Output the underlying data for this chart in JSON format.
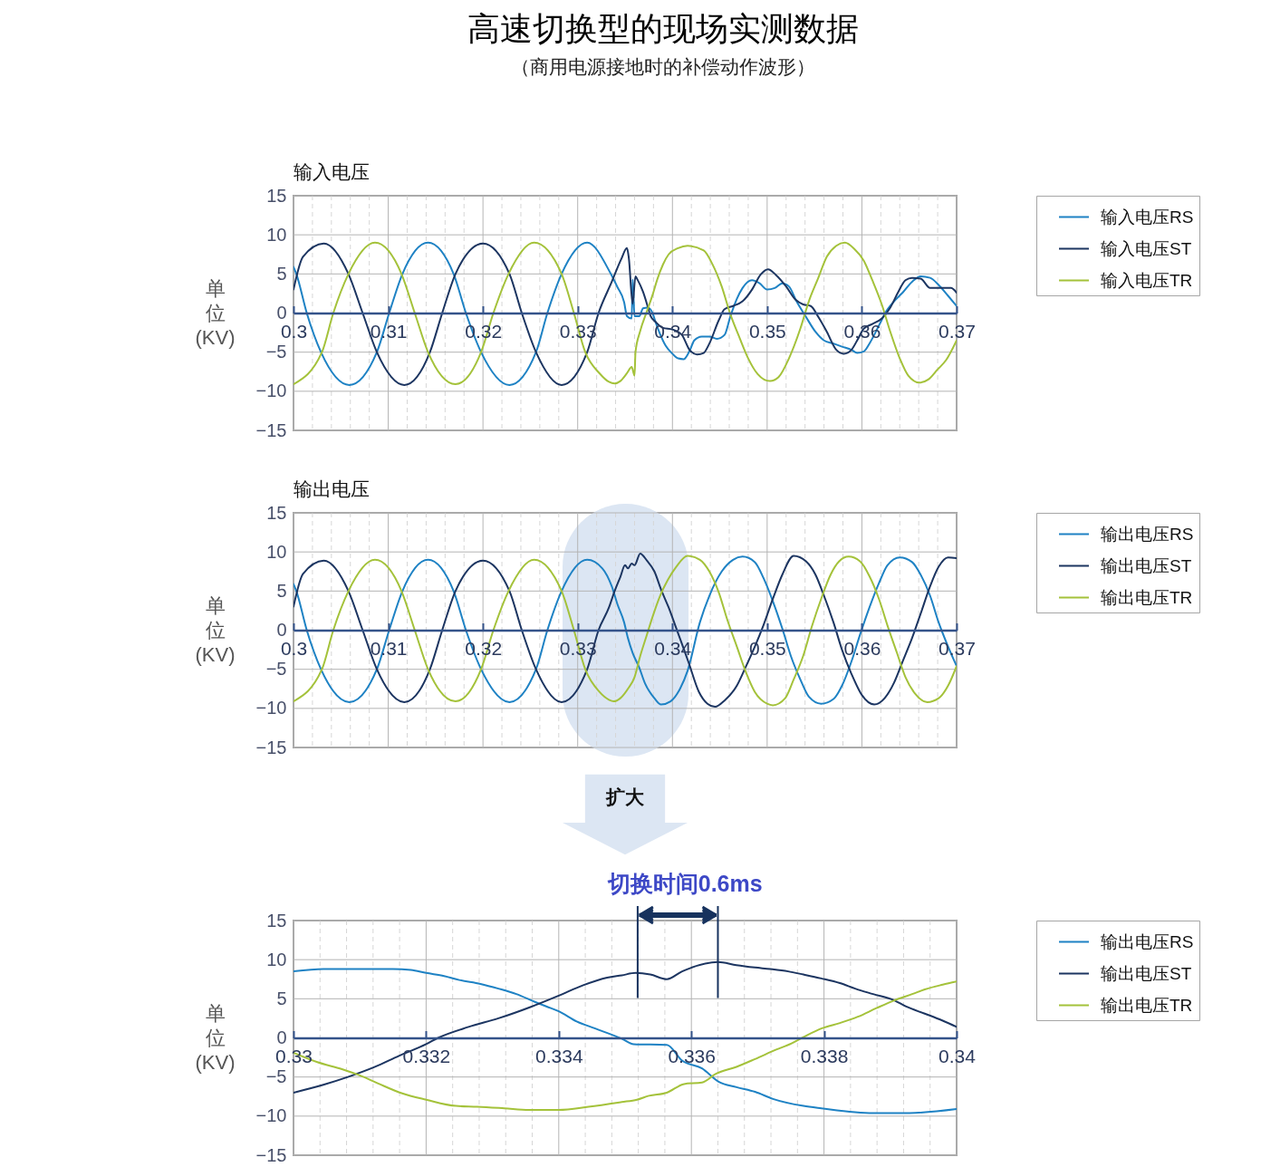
{
  "chart_data": [
    {
      "type": "other",
      "title": "高速切换型的现场实测数据",
      "subtitle": "（商用电源接地时的补偿动作波形）"
    },
    {
      "type": "line",
      "title": "输入电压",
      "ylabel": "单位(KV)",
      "xlim": [
        0.3,
        0.37
      ],
      "ylim": [
        -15,
        15
      ],
      "xticks": [
        0.3,
        {
          "value": 0.302,
          "label": null
        },
        {
          "value": 0.304,
          "label": null
        },
        {
          "value": 0.306,
          "label": null
        },
        {
          "value": 0.308,
          "label": null
        },
        0.31,
        {
          "value": 0.312,
          "label": null
        },
        {
          "value": 0.314,
          "label": null
        },
        {
          "value": 0.316,
          "label": null
        },
        {
          "value": 0.318,
          "label": null
        },
        0.32,
        {
          "value": 0.322,
          "label": null
        },
        {
          "value": 0.324,
          "label": null
        },
        {
          "value": 0.326,
          "label": null
        },
        {
          "value": 0.328,
          "label": null
        },
        0.33,
        {
          "value": 0.332,
          "label": null
        },
        {
          "value": 0.334,
          "label": null
        },
        {
          "value": 0.336,
          "label": null
        },
        {
          "value": 0.338,
          "label": null
        },
        0.34,
        {
          "value": 0.342,
          "label": null
        },
        {
          "value": 0.344,
          "label": null
        },
        {
          "value": 0.346,
          "label": null
        },
        {
          "value": 0.348,
          "label": null
        },
        0.35,
        {
          "value": 0.352,
          "label": null
        },
        {
          "value": 0.354,
          "label": null
        },
        {
          "value": 0.356,
          "label": null
        },
        {
          "value": 0.358,
          "label": null
        },
        0.36,
        {
          "value": 0.362,
          "label": null
        },
        {
          "value": 0.364,
          "label": null
        },
        {
          "value": 0.366,
          "label": null
        },
        {
          "value": 0.368,
          "label": null
        },
        0.37
      ],
      "yticks": [
        -15,
        -10,
        -5,
        0,
        5,
        10,
        15
      ],
      "grid": true,
      "legend": "right",
      "series": [
        {
          "name": "输入电压RS",
          "color": "#1e82c4",
          "x": [
            0.3,
            0.3003,
            0.3014,
            0.3029,
            0.3059,
            0.3088,
            0.3101,
            0.3115,
            0.3142,
            0.3169,
            0.3182,
            0.3198,
            0.3228,
            0.3256,
            0.3268,
            0.3283,
            0.331,
            0.3335,
            0.3342,
            0.3349,
            0.3352,
            0.3357,
            0.3358,
            0.336,
            0.3365,
            0.3369,
            0.3374,
            0.3379,
            0.3382,
            0.3387,
            0.3393,
            0.34,
            0.3406,
            0.3412,
            0.3419,
            0.3423,
            0.3431,
            0.3439,
            0.3447,
            0.3455,
            0.3461,
            0.3468,
            0.3474,
            0.3484,
            0.3492,
            0.35,
            0.3508,
            0.3516,
            0.3523,
            0.3531,
            0.3541,
            0.3551,
            0.356,
            0.357,
            0.3579,
            0.3589,
            0.3595,
            0.3602,
            0.3608,
            0.3618,
            0.3626,
            0.3634,
            0.3643,
            0.3653,
            0.3662,
            0.3672,
            0.3681,
            0.3691,
            0.37
          ],
          "values": [
            5.9,
            5.0,
            0.0,
            -5.0,
            -9.2,
            -5.0,
            0.0,
            5.0,
            9.0,
            5.0,
            0.0,
            -5.0,
            -9.2,
            -5.0,
            0.0,
            5.0,
            9.0,
            5.0,
            3.3,
            1.4,
            -0.4,
            -0.7,
            4.3,
            -0.4,
            -0.4,
            0.6,
            0.7,
            0.0,
            -1.1,
            -2.7,
            -4.2,
            -5.2,
            -5.8,
            -5.9,
            -4.6,
            -3.5,
            -3.0,
            -3.0,
            -3.3,
            -2.8,
            -0.5,
            1.8,
            3.2,
            4.2,
            3.8,
            3.0,
            3.2,
            3.8,
            3.4,
            1.5,
            -0.5,
            -2.4,
            -3.5,
            -3.9,
            -4.3,
            -4.7,
            -5.1,
            -4.9,
            -3.9,
            -1.6,
            0.3,
            1.5,
            2.6,
            4.0,
            4.7,
            4.5,
            3.6,
            2.2,
            0.9
          ]
        },
        {
          "name": "输入电压ST",
          "color": "#1c3561",
          "x": [
            0.3,
            0.301,
            0.3032,
            0.3058,
            0.3073,
            0.3088,
            0.3117,
            0.3144,
            0.3157,
            0.3171,
            0.32,
            0.3228,
            0.3241,
            0.3256,
            0.3283,
            0.331,
            0.3322,
            0.3336,
            0.3346,
            0.3352,
            0.3354,
            0.3358,
            0.3361,
            0.3363,
            0.3369,
            0.3374,
            0.3377,
            0.3382,
            0.339,
            0.34,
            0.341,
            0.3418,
            0.3426,
            0.3433,
            0.3439,
            0.3449,
            0.3455,
            0.3464,
            0.3474,
            0.3484,
            0.3493,
            0.3501,
            0.3509,
            0.352,
            0.353,
            0.3538,
            0.3546,
            0.3554,
            0.3563,
            0.3573,
            0.3581,
            0.3589,
            0.3595,
            0.3602,
            0.3611,
            0.3621,
            0.363,
            0.3638,
            0.3646,
            0.3653,
            0.3662,
            0.3672,
            0.3685,
            0.3694,
            0.37
          ],
          "values": [
            3.0,
            7.2,
            8.9,
            5.0,
            0.0,
            -5.0,
            -9.2,
            -5.0,
            0.0,
            5.0,
            8.9,
            5.0,
            0.0,
            -5.0,
            -9.2,
            -5.0,
            0.0,
            4.0,
            6.9,
            8.3,
            7.0,
            1.2,
            4.7,
            4.3,
            2.7,
            0.8,
            -0.4,
            -1.1,
            -1.9,
            -2.1,
            -2.8,
            -4.7,
            -5.3,
            -5.1,
            -3.9,
            -0.9,
            0.5,
            0.9,
            1.5,
            3.0,
            4.9,
            5.6,
            4.9,
            3.4,
            1.7,
            1.1,
            0.9,
            -0.5,
            -2.4,
            -4.7,
            -5.2,
            -4.7,
            -3.5,
            -2.0,
            -1.4,
            -0.7,
            0.7,
            2.6,
            4.2,
            4.5,
            4.4,
            3.2,
            3.2,
            3.2,
            2.6
          ]
        },
        {
          "name": "输入电压TR",
          "color": "#a4c23a",
          "x": [
            0.3,
            0.303,
            0.3042,
            0.3058,
            0.3086,
            0.3114,
            0.3128,
            0.3142,
            0.3171,
            0.3198,
            0.3211,
            0.3227,
            0.3254,
            0.3283,
            0.3296,
            0.3308,
            0.3323,
            0.3333,
            0.3339,
            0.3345,
            0.3352,
            0.3357,
            0.336,
            0.3361,
            0.3366,
            0.3373,
            0.3379,
            0.3384,
            0.339,
            0.3396,
            0.3406,
            0.3416,
            0.3433,
            0.3442,
            0.3452,
            0.3461,
            0.3471,
            0.348,
            0.349,
            0.3503,
            0.3512,
            0.3523,
            0.3535,
            0.3544,
            0.3554,
            0.3563,
            0.3573,
            0.3582,
            0.3592,
            0.3602,
            0.3611,
            0.3621,
            0.363,
            0.364,
            0.3649,
            0.3661,
            0.367,
            0.368,
            0.3689,
            0.37
          ],
          "values": [
            -9.1,
            -5.0,
            0.0,
            5.0,
            9.0,
            5.0,
            0.0,
            -5.0,
            -9.1,
            -5.0,
            0.0,
            5.0,
            9.0,
            5.0,
            0.0,
            -5.0,
            -7.7,
            -8.8,
            -9.0,
            -8.7,
            -7.7,
            -6.9,
            -8.0,
            -5.0,
            -2.3,
            0.2,
            2.3,
            4.3,
            6.2,
            7.5,
            8.3,
            8.6,
            8.0,
            6.3,
            3.4,
            -0.1,
            -3.2,
            -5.8,
            -7.8,
            -8.7,
            -8.2,
            -5.8,
            -2.0,
            1.5,
            4.5,
            7.2,
            8.6,
            9.0,
            8.2,
            6.7,
            4.2,
            1.1,
            -2.4,
            -5.8,
            -8.0,
            -8.9,
            -8.5,
            -7.2,
            -6.0,
            -3.5
          ]
        }
      ]
    },
    {
      "type": "line",
      "title": "输出电压",
      "ylabel": "单位(KV)",
      "xlim": [
        0.3,
        0.37
      ],
      "ylim": [
        -15,
        15
      ],
      "xticks": [
        0.3,
        {
          "value": 0.302,
          "label": null
        },
        {
          "value": 0.304,
          "label": null
        },
        {
          "value": 0.306,
          "label": null
        },
        {
          "value": 0.308,
          "label": null
        },
        0.31,
        {
          "value": 0.312,
          "label": null
        },
        {
          "value": 0.314,
          "label": null
        },
        {
          "value": 0.316,
          "label": null
        },
        {
          "value": 0.318,
          "label": null
        },
        0.32,
        {
          "value": 0.322,
          "label": null
        },
        {
          "value": 0.324,
          "label": null
        },
        {
          "value": 0.326,
          "label": null
        },
        {
          "value": 0.328,
          "label": null
        },
        0.33,
        {
          "value": 0.332,
          "label": null
        },
        {
          "value": 0.334,
          "label": null
        },
        {
          "value": 0.336,
          "label": null
        },
        {
          "value": 0.338,
          "label": null
        },
        0.34,
        {
          "value": 0.342,
          "label": null
        },
        {
          "value": 0.344,
          "label": null
        },
        {
          "value": 0.346,
          "label": null
        },
        {
          "value": 0.348,
          "label": null
        },
        0.35,
        {
          "value": 0.352,
          "label": null
        },
        {
          "value": 0.354,
          "label": null
        },
        {
          "value": 0.356,
          "label": null
        },
        {
          "value": 0.358,
          "label": null
        },
        0.36,
        {
          "value": 0.362,
          "label": null
        },
        {
          "value": 0.364,
          "label": null
        },
        {
          "value": 0.366,
          "label": null
        },
        {
          "value": 0.368,
          "label": null
        },
        0.37
      ],
      "yticks": [
        -15,
        -10,
        -5,
        0,
        5,
        10,
        15
      ],
      "grid": true,
      "legend": "right",
      "bands": [
        {
          "axis": "x",
          "from": 0.3284,
          "to": 0.3417,
          "color": "#dce6f3"
        }
      ],
      "series": [
        {
          "name": "输出电压RS",
          "color": "#1e82c4",
          "x": [
            0.3,
            0.3003,
            0.3014,
            0.3029,
            0.3059,
            0.3088,
            0.3101,
            0.3115,
            0.3142,
            0.3169,
            0.3182,
            0.3198,
            0.3228,
            0.3256,
            0.3268,
            0.3283,
            0.331,
            0.3326,
            0.3336,
            0.3342,
            0.3349,
            0.3353,
            0.3358,
            0.3365,
            0.3371,
            0.3381,
            0.3388,
            0.3398,
            0.3408,
            0.3416,
            0.3429,
            0.3439,
            0.3452,
            0.3464,
            0.3474,
            0.3487,
            0.3496,
            0.3506,
            0.3516,
            0.3525,
            0.3535,
            0.3544,
            0.3557,
            0.357,
            0.3579,
            0.3589,
            0.3598,
            0.3608,
            0.3618,
            0.3627,
            0.364,
            0.3653,
            0.3662,
            0.3672,
            0.3681,
            0.3691,
            0.37
          ],
          "values": [
            5.9,
            5.0,
            0.0,
            -5.0,
            -9.2,
            -5.0,
            0.0,
            5.0,
            9.0,
            5.0,
            0.0,
            -5.0,
            -9.2,
            -5.0,
            0.0,
            5.0,
            9.0,
            7.9,
            5.6,
            3.3,
            1.0,
            -1.0,
            -2.9,
            -4.8,
            -6.8,
            -8.7,
            -9.5,
            -9.1,
            -7.5,
            -5.2,
            1.0,
            4.4,
            7.5,
            9.0,
            9.4,
            8.7,
            6.7,
            3.7,
            0.2,
            -3.3,
            -6.3,
            -8.5,
            -9.4,
            -8.8,
            -7.1,
            -4.0,
            -0.6,
            2.9,
            6.0,
            8.3,
            9.3,
            8.7,
            7.1,
            4.4,
            1.0,
            -2.1,
            -4.6
          ]
        },
        {
          "name": "输出电压ST",
          "color": "#1c3561",
          "x": [
            0.3,
            0.301,
            0.3032,
            0.3058,
            0.3073,
            0.3088,
            0.3117,
            0.3144,
            0.3157,
            0.3171,
            0.32,
            0.3228,
            0.3241,
            0.3256,
            0.3283,
            0.331,
            0.3322,
            0.3333,
            0.3339,
            0.3345,
            0.335,
            0.3353,
            0.3357,
            0.336,
            0.3366,
            0.3373,
            0.3381,
            0.3388,
            0.3396,
            0.3403,
            0.3409,
            0.3417,
            0.3428,
            0.3437,
            0.3445,
            0.3455,
            0.3468,
            0.3477,
            0.3487,
            0.3496,
            0.3506,
            0.3516,
            0.3528,
            0.3541,
            0.3551,
            0.356,
            0.357,
            0.3579,
            0.3589,
            0.36,
            0.3613,
            0.3624,
            0.3634,
            0.3643,
            0.3653,
            0.3662,
            0.3672,
            0.3681,
            0.3691,
            0.37
          ],
          "values": [
            3.0,
            7.2,
            8.9,
            5.0,
            0.0,
            -5.0,
            -9.2,
            -5.0,
            0.0,
            5.0,
            8.9,
            5.0,
            0.0,
            -5.0,
            -9.2,
            -5.0,
            0.0,
            2.9,
            5.0,
            6.8,
            8.3,
            7.9,
            8.5,
            8.3,
            9.8,
            8.9,
            7.5,
            5.2,
            2.9,
            0.6,
            -1.4,
            -4.1,
            -7.9,
            -9.4,
            -9.8,
            -9.0,
            -7.1,
            -4.8,
            -2.1,
            0.6,
            4.0,
            7.1,
            9.5,
            8.8,
            7.1,
            4.4,
            1.0,
            -2.5,
            -5.6,
            -8.3,
            -9.5,
            -8.7,
            -6.7,
            -4.0,
            -1.0,
            2.1,
            5.6,
            8.1,
            9.3,
            9.2
          ]
        },
        {
          "name": "输出电压TR",
          "color": "#a4c23a",
          "x": [
            0.3,
            0.303,
            0.3042,
            0.3058,
            0.3086,
            0.3114,
            0.3128,
            0.3142,
            0.3171,
            0.3198,
            0.3211,
            0.3227,
            0.3254,
            0.3283,
            0.3296,
            0.3308,
            0.3323,
            0.3333,
            0.3338,
            0.3345,
            0.3353,
            0.336,
            0.3366,
            0.3373,
            0.3379,
            0.3387,
            0.3395,
            0.3404,
            0.3416,
            0.3429,
            0.3439,
            0.3449,
            0.3458,
            0.3468,
            0.3477,
            0.3487,
            0.35,
            0.3506,
            0.3519,
            0.3528,
            0.3538,
            0.3547,
            0.3557,
            0.3567,
            0.3576,
            0.3586,
            0.3598,
            0.3608,
            0.3618,
            0.3627,
            0.3637,
            0.3646,
            0.3656,
            0.3669,
            0.3681,
            0.3691,
            0.37
          ],
          "values": [
            -9.1,
            -5.0,
            0.0,
            5.0,
            9.0,
            5.0,
            0.0,
            -5.0,
            -9.1,
            -5.0,
            0.0,
            5.0,
            9.0,
            5.0,
            0.0,
            -5.0,
            -7.9,
            -8.9,
            -9.1,
            -8.7,
            -7.5,
            -6.0,
            -3.3,
            -0.6,
            1.7,
            4.4,
            6.4,
            8.1,
            9.5,
            9.0,
            7.5,
            4.8,
            1.3,
            -2.1,
            -5.2,
            -7.9,
            -9.4,
            -9.6,
            -8.7,
            -6.3,
            -3.3,
            0.4,
            4.0,
            7.1,
            8.8,
            9.4,
            8.8,
            6.9,
            4.0,
            0.6,
            -2.9,
            -6.0,
            -8.1,
            -9.2,
            -8.7,
            -7.1,
            -4.6
          ]
        }
      ]
    },
    {
      "type": "line",
      "ylabel": "单位(KV)",
      "xlim": [
        0.33,
        0.34
      ],
      "ylim": [
        -15,
        15
      ],
      "xticks": [
        0.33,
        {
          "value": 0.3304,
          "label": null
        },
        {
          "value": 0.3308,
          "label": null
        },
        {
          "value": 0.3312,
          "label": null
        },
        {
          "value": 0.3316,
          "label": null
        },
        0.332,
        {
          "value": 0.3324,
          "label": null
        },
        {
          "value": 0.3328,
          "label": null
        },
        {
          "value": 0.3332,
          "label": null
        },
        {
          "value": 0.3336,
          "label": null
        },
        0.334,
        {
          "value": 0.3344,
          "label": null
        },
        {
          "value": 0.3348,
          "label": null
        },
        {
          "value": 0.3352,
          "label": null
        },
        {
          "value": 0.3356,
          "label": null
        },
        0.336,
        {
          "value": 0.3364,
          "label": null
        },
        {
          "value": 0.3368,
          "label": null
        },
        {
          "value": 0.3372,
          "label": null
        },
        {
          "value": 0.3376,
          "label": null
        },
        0.338,
        {
          "value": 0.3384,
          "label": null
        },
        {
          "value": 0.3388,
          "label": null
        },
        {
          "value": 0.3392,
          "label": null
        },
        {
          "value": 0.3396,
          "label": null
        },
        0.34
      ],
      "yticks": [
        -15,
        -10,
        -5,
        0,
        5,
        10,
        15
      ],
      "grid": true,
      "legend": "right",
      "ref_lines": [
        {
          "axis": "x",
          "value": 0.33519,
          "color": "#17325e"
        },
        {
          "axis": "x",
          "value": 0.3364,
          "color": "#17325e"
        }
      ],
      "annotations": [
        "扩大",
        "切换时间0.6ms"
      ],
      "series": [
        {
          "name": "输出电压RS",
          "color": "#1e82c4",
          "x": [
            0.33,
            0.33045,
            0.3315,
            0.33177,
            0.332,
            0.33227,
            0.3325,
            0.33282,
            0.33309,
            0.33336,
            0.33364,
            0.33382,
            0.334,
            0.33427,
            0.33455,
            0.33495,
            0.33513,
            0.33563,
            0.33586,
            0.33616,
            0.33641,
            0.33668,
            0.33696,
            0.33723,
            0.33769,
            0.33796,
            0.33874,
            0.33929,
            0.34
          ],
          "values": [
            8.5,
            8.8,
            8.8,
            8.7,
            8.3,
            7.9,
            7.4,
            6.9,
            6.3,
            5.6,
            4.6,
            4.0,
            3.4,
            2.1,
            1.2,
            -0.1,
            -0.8,
            -0.9,
            -2.9,
            -3.9,
            -5.6,
            -6.3,
            -6.9,
            -7.8,
            -8.7,
            -9.0,
            -9.6,
            -9.6,
            -9.1
          ]
        },
        {
          "name": "输出电压ST",
          "color": "#1c3561",
          "x": [
            0.33,
            0.33045,
            0.33082,
            0.33123,
            0.33159,
            0.332,
            0.33218,
            0.33264,
            0.33309,
            0.33359,
            0.334,
            0.33436,
            0.33473,
            0.33495,
            0.33516,
            0.33538,
            0.33563,
            0.33586,
            0.3364,
            0.33668,
            0.33696,
            0.33719,
            0.33746,
            0.33769,
            0.33796,
            0.33824,
            0.33847,
            0.33874,
            0.33906,
            0.33924,
            0.33952,
            0.33979,
            0.34
          ],
          "values": [
            -7.0,
            -6.0,
            -5.0,
            -3.7,
            -2.3,
            -0.8,
            0.0,
            1.4,
            2.5,
            4.0,
            5.4,
            6.7,
            7.7,
            8.0,
            8.3,
            8.1,
            7.5,
            8.5,
            9.7,
            9.3,
            9.0,
            8.8,
            8.5,
            8.1,
            7.6,
            7.0,
            6.3,
            5.6,
            4.8,
            4.0,
            3.1,
            2.2,
            1.4
          ]
        },
        {
          "name": "输出电压TR",
          "color": "#a4c23a",
          "x": [
            0.33,
            0.33036,
            0.33073,
            0.331,
            0.33127,
            0.33164,
            0.332,
            0.33245,
            0.33277,
            0.33318,
            0.33355,
            0.334,
            0.33445,
            0.33495,
            0.33518,
            0.33536,
            0.33563,
            0.33589,
            0.33616,
            0.33637,
            0.33668,
            0.33696,
            0.33728,
            0.33751,
            0.33769,
            0.33796,
            0.33824,
            0.33851,
            0.33879,
            0.33906,
            0.33933,
            0.33952,
            0.33979,
            0.34
          ],
          "values": [
            -1.9,
            -3.1,
            -4.0,
            -4.8,
            -5.8,
            -7.1,
            -7.9,
            -8.7,
            -8.8,
            -9.0,
            -9.2,
            -9.2,
            -8.8,
            -8.2,
            -7.9,
            -7.4,
            -7.0,
            -5.9,
            -5.7,
            -4.6,
            -3.7,
            -2.7,
            -1.5,
            -0.7,
            0.1,
            1.2,
            1.9,
            2.7,
            3.8,
            4.8,
            5.6,
            6.2,
            6.8,
            7.2
          ]
        }
      ]
    }
  ]
}
